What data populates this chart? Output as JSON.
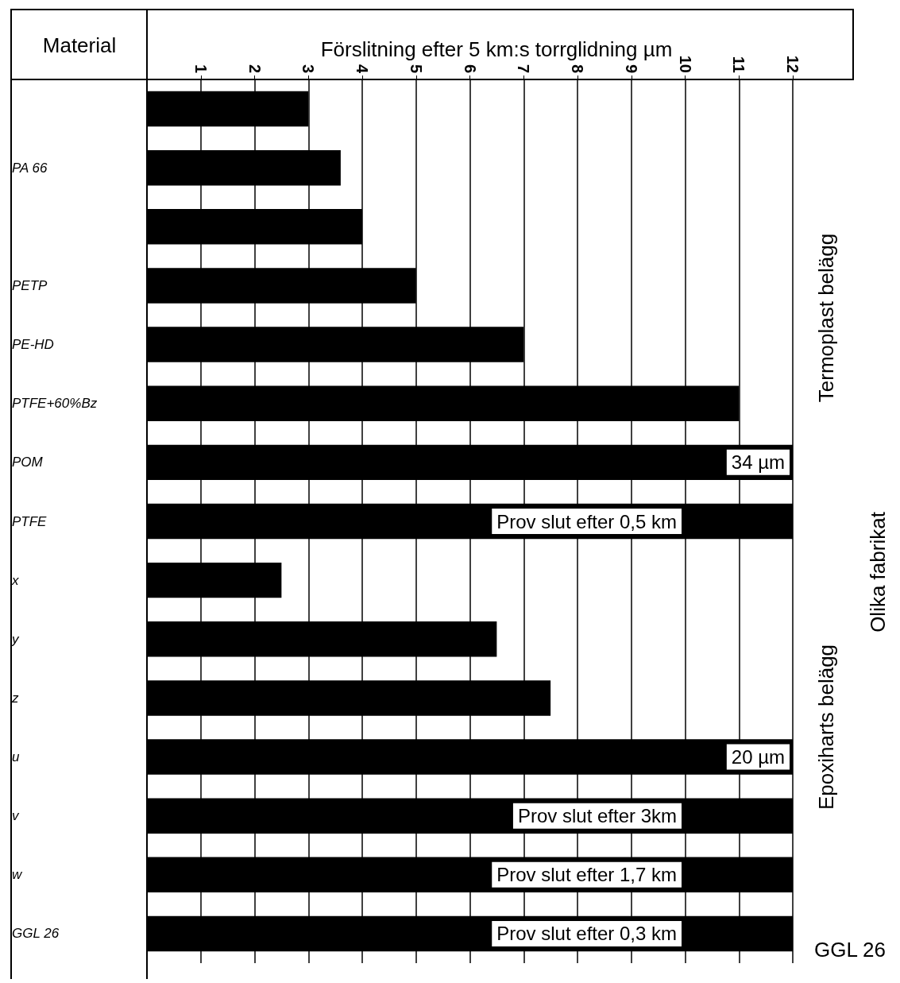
{
  "chart_data": {
    "type": "bar",
    "orientation": "horizontal",
    "xlabel": "Förslitning efter 5 km:s torrglidning µm",
    "ylabel": "Material",
    "categories": [
      null,
      "PA 66",
      null,
      "PETP",
      "PE-HD",
      "PTFE+60%Bz",
      "POM",
      "PTFE",
      "x",
      "y",
      "z",
      "u",
      "v",
      "w",
      "GGL 26"
    ],
    "values": [
      3,
      3.6,
      4,
      5,
      7,
      11,
      12,
      12,
      2.5,
      6.5,
      7.5,
      12,
      12,
      12,
      12
    ],
    "value_labels": [
      null,
      null,
      null,
      null,
      null,
      null,
      null,
      "Prov slut efter 0,5 km",
      null,
      null,
      null,
      null,
      "Prov slut efter 3km",
      "Prov slut efter 1,7 km",
      "Prov slut efter 0,3 km"
    ],
    "color": "#000000",
    "xlim": [
      0,
      12
    ],
    "xticks": [
      1,
      2,
      3,
      4,
      5,
      6,
      7,
      8,
      9,
      10,
      11,
      12
    ],
    "grid": "x",
    "annotations": [
      "Termoplast belägg",
      "Epoxiharts belägg",
      "Olika fabrikat",
      "GGL 26",
      {
        "text": "34 µm",
        "x": 12,
        "y": "POM"
      },
      {
        "text": "20 µm",
        "x": 12,
        "y": "u"
      }
    ]
  }
}
